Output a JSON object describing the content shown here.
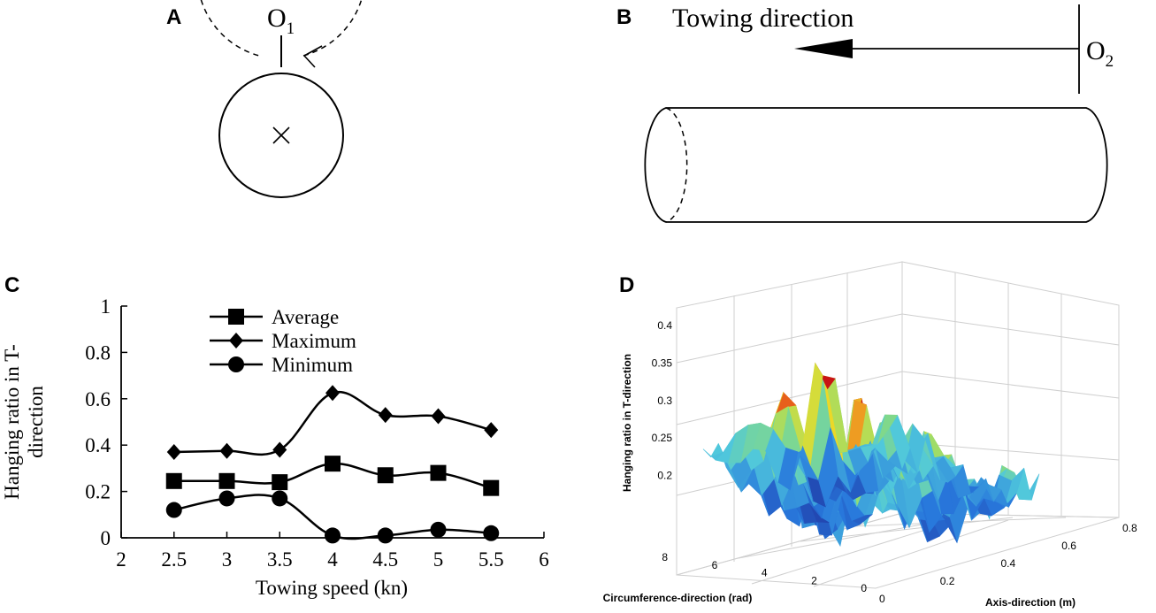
{
  "panel_a": {
    "letter": "A",
    "label": "O",
    "label_sub": "1"
  },
  "panel_b": {
    "letter": "B",
    "arrow_label": "Towing direction",
    "label": "O",
    "label_sub": "2"
  },
  "panel_c": {
    "letter": "C"
  },
  "panel_d": {
    "letter": "D"
  },
  "chart_data": [
    {
      "type": "line",
      "title": "",
      "xlabel": "Towing speed (kn)",
      "ylabel_line1": "Hanging ratio in T-",
      "ylabel_line2": "direction",
      "xlim": [
        2,
        6
      ],
      "ylim": [
        0,
        1
      ],
      "xticks": [
        "2",
        "2.5",
        "3",
        "3.5",
        "4",
        "4.5",
        "5",
        "5.5",
        "6"
      ],
      "yticks": [
        "0",
        "0.2",
        "0.4",
        "0.6",
        "0.8",
        "1"
      ],
      "x": [
        2.5,
        3,
        3.5,
        4,
        4.5,
        5,
        5.5
      ],
      "series": [
        {
          "name": "Average",
          "marker": "square",
          "values": [
            0.245,
            0.245,
            0.24,
            0.32,
            0.27,
            0.28,
            0.215
          ]
        },
        {
          "name": "Maximum",
          "marker": "diamond",
          "values": [
            0.37,
            0.375,
            0.38,
            0.625,
            0.53,
            0.525,
            0.465
          ]
        },
        {
          "name": "Minimum",
          "marker": "circle",
          "values": [
            0.12,
            0.17,
            0.17,
            0.01,
            0.01,
            0.035,
            0.02
          ]
        }
      ],
      "legend_position": "top-center"
    },
    {
      "type": "surface",
      "zlabel": "Hanging ratio in T-direction",
      "xlabel": "Axis-direction (m)",
      "ylabel": "Circumference-direction (rad)",
      "xticks": [
        "0",
        "0.2",
        "0.4",
        "0.6",
        "0.8"
      ],
      "yticks": [
        "0",
        "2",
        "4",
        "6",
        "8"
      ],
      "zticks": [
        "0.2",
        "0.25",
        "0.3",
        "0.35",
        "0.4"
      ],
      "xlim": [
        0,
        0.8
      ],
      "ylim": [
        0,
        8
      ],
      "zlim": [
        0.15,
        0.4
      ]
    }
  ]
}
